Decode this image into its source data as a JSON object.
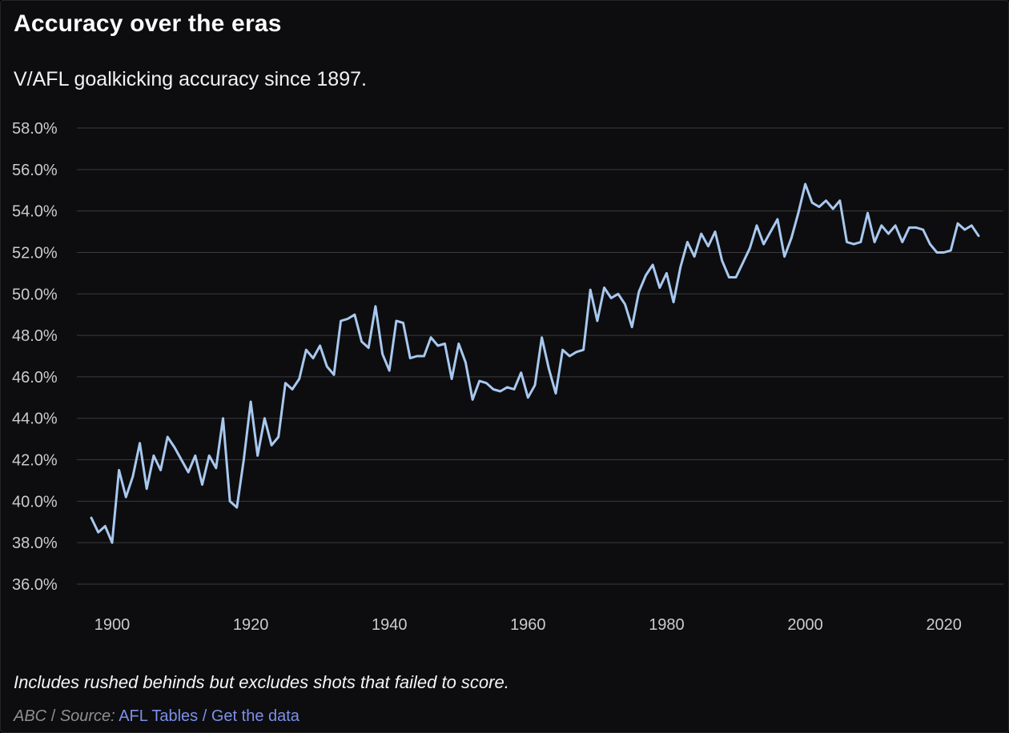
{
  "header": {
    "title": "Accuracy over the eras",
    "subtitle": "V/AFL goalkicking accuracy since 1897."
  },
  "chart_data": {
    "type": "line",
    "title": "Accuracy over the eras",
    "subtitle": "V/AFL goalkicking accuracy since 1897.",
    "xlabel": "",
    "ylabel": "",
    "x_start_year": 1897,
    "x_end_year": 2025,
    "xlim": [
      1897,
      2025
    ],
    "ylim": [
      36,
      58
    ],
    "grid": "horizontal",
    "legend": "none",
    "line_color": "#a8c8ef",
    "series": [
      {
        "name": "V/AFL goalkicking accuracy (%)",
        "values": [
          39.2,
          38.5,
          38.8,
          38.0,
          41.5,
          40.2,
          41.2,
          42.8,
          40.6,
          42.2,
          41.5,
          43.1,
          42.6,
          42.0,
          41.4,
          42.2,
          40.8,
          42.2,
          41.6,
          44.0,
          40.0,
          39.7,
          42.0,
          44.8,
          42.2,
          44.0,
          42.7,
          43.1,
          45.7,
          45.4,
          45.9,
          47.3,
          46.9,
          47.5,
          46.5,
          46.1,
          48.7,
          48.8,
          49.0,
          47.7,
          47.4,
          49.4,
          47.1,
          46.3,
          48.7,
          48.6,
          46.9,
          47.0,
          47.0,
          47.9,
          47.5,
          47.6,
          45.9,
          47.6,
          46.7,
          44.9,
          45.8,
          45.7,
          45.4,
          45.3,
          45.5,
          45.4,
          46.2,
          45.0,
          45.6,
          47.9,
          46.4,
          45.2,
          47.3,
          47.0,
          47.2,
          47.3,
          50.2,
          48.7,
          50.3,
          49.8,
          50.0,
          49.5,
          48.4,
          50.1,
          50.9,
          51.4,
          50.3,
          51.0,
          49.6,
          51.3,
          52.5,
          51.8,
          52.9,
          52.3,
          53.0,
          51.6,
          50.8,
          50.8,
          51.5,
          52.2,
          53.3,
          52.4,
          53.0,
          53.6,
          51.8,
          52.7,
          53.9,
          55.3,
          54.4,
          54.2,
          54.5,
          54.1,
          54.5,
          52.5,
          52.4,
          52.5,
          53.9,
          52.5,
          53.3,
          52.9,
          53.3,
          52.5,
          53.2,
          53.2,
          53.1,
          52.4,
          52.0,
          52.0,
          52.1,
          53.4,
          53.1,
          53.3,
          52.8
        ]
      }
    ],
    "yticks": [
      {
        "value": 58,
        "label": "58.0%"
      },
      {
        "value": 56,
        "label": "56.0%"
      },
      {
        "value": 54,
        "label": "54.0%"
      },
      {
        "value": 52,
        "label": "52.0%"
      },
      {
        "value": 50,
        "label": "50.0%"
      },
      {
        "value": 48,
        "label": "48.0%"
      },
      {
        "value": 46,
        "label": "46.0%"
      },
      {
        "value": 44,
        "label": "44.0%"
      },
      {
        "value": 42,
        "label": "42.0%"
      },
      {
        "value": 40,
        "label": "40.0%"
      },
      {
        "value": 38,
        "label": "38.0%"
      },
      {
        "value": 36,
        "label": "36.0%"
      }
    ],
    "xticks": [
      {
        "value": 1900,
        "label": "1900"
      },
      {
        "value": 1920,
        "label": "1920"
      },
      {
        "value": 1940,
        "label": "1940"
      },
      {
        "value": 1960,
        "label": "1960"
      },
      {
        "value": 1980,
        "label": "1980"
      },
      {
        "value": 2000,
        "label": "2000"
      },
      {
        "value": 2020,
        "label": "2020"
      }
    ]
  },
  "footer": {
    "note": "Includes rushed behinds but excludes shots that failed to score.",
    "attribution_org": "ABC",
    "separator": "/",
    "source_label": "Source:",
    "source_link_label": "AFL Tables",
    "data_link_label": "Get the data"
  },
  "colors": {
    "background": "#0d0d0f",
    "title_text": "#fbfbfb",
    "axis_text": "#cbcbcd",
    "gridline": "#3b3b3d",
    "line": "#a8c8ef",
    "link": "#7c90e8",
    "attribution_text": "#8f8f92"
  }
}
